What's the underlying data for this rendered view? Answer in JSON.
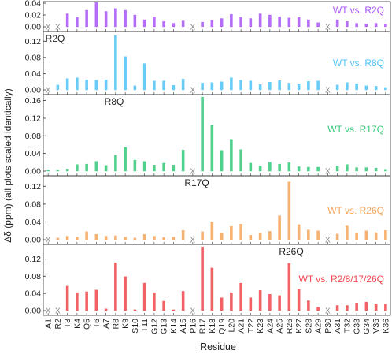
{
  "figure": {
    "y_axis_label": "Δδ (ppm) (all plots scaled identically)",
    "x_axis_label": "Residue"
  },
  "chart_data": [
    {
      "type": "bar",
      "title": "WT vs. R2Q",
      "panel_label": "",
      "color": "#a855f7",
      "ylim": [
        0,
        0.04
      ],
      "yticks": [
        0,
        0.02,
        0.04
      ],
      "yticklabels": [
        "0.00",
        "0.02",
        "0.04"
      ],
      "categories": [
        "A1",
        "R2",
        "T3",
        "K4",
        "Q5",
        "T6",
        "A7",
        "R8",
        "K9",
        "S10",
        "T11",
        "G12",
        "G13",
        "K14",
        "A15",
        "P16",
        "R17",
        "K18",
        "Q19",
        "L20",
        "A21",
        "T22",
        "K23",
        "A24",
        "A25",
        "R26",
        "K27",
        "S28",
        "A29",
        "P30",
        "A31",
        "T32",
        "G33",
        "G34",
        "V35",
        "K36"
      ],
      "values": [
        null,
        null,
        0.022,
        0.016,
        0.028,
        0.041,
        0.026,
        0.031,
        0.028,
        0.02,
        0.012,
        0.017,
        0.009,
        0.006,
        0.01,
        null,
        0.008,
        0.011,
        0.014,
        0.021,
        0.016,
        0.014,
        0.022,
        0.02,
        0.017,
        0.015,
        0.016,
        0.012,
        0.007,
        null,
        0.012,
        0.009,
        0.006,
        0.005,
        0.006,
        0.005
      ],
      "missing_marker": "X"
    },
    {
      "type": "bar",
      "title": "WT vs. R8Q",
      "panel_label": "R2Q",
      "color": "#4fc3f7",
      "ylim": [
        0,
        0.14
      ],
      "yticks": [
        0,
        0.04,
        0.08,
        0.12
      ],
      "yticklabels": [
        "0.00",
        "0.04",
        "0.08",
        "0.12"
      ],
      "categories": [
        "A1",
        "R2",
        "T3",
        "K4",
        "Q5",
        "T6",
        "A7",
        "R8",
        "K9",
        "S10",
        "T11",
        "G12",
        "G13",
        "K14",
        "A15",
        "P16",
        "R17",
        "K18",
        "Q19",
        "L20",
        "A21",
        "T22",
        "K23",
        "A24",
        "A25",
        "R26",
        "K27",
        "S28",
        "A29",
        "P30",
        "A31",
        "T32",
        "G33",
        "G34",
        "V35",
        "K36"
      ],
      "values": [
        null,
        0.012,
        0.028,
        0.03,
        0.025,
        0.024,
        0.025,
        0.134,
        0.082,
        0.01,
        0.065,
        0.022,
        0.022,
        0.011,
        0.027,
        null,
        0.017,
        0.018,
        0.02,
        0.03,
        0.024,
        0.022,
        0.013,
        0.019,
        0.023,
        0.017,
        0.015,
        0.021,
        0.022,
        null,
        0.012,
        0.018,
        0.015,
        0.01,
        0.009,
        0.006
      ],
      "missing_marker": "X"
    },
    {
      "type": "bar",
      "title": "WT vs. R17Q",
      "panel_label": "R8Q",
      "color": "#34c97a",
      "ylim": [
        0,
        0.17
      ],
      "yticks": [
        0,
        0.04,
        0.08,
        0.12,
        0.16
      ],
      "yticklabels": [
        "0.00",
        "0.04",
        "0.08",
        "0.12",
        "0.16"
      ],
      "categories": [
        "A1",
        "R2",
        "T3",
        "K4",
        "Q5",
        "T6",
        "A7",
        "R8",
        "K9",
        "S10",
        "T11",
        "G12",
        "G13",
        "K14",
        "A15",
        "P16",
        "R17",
        "K18",
        "Q19",
        "L20",
        "A21",
        "T22",
        "K23",
        "A24",
        "A25",
        "R26",
        "K27",
        "S28",
        "A29",
        "P30",
        "A31",
        "T32",
        "G33",
        "G34",
        "V35",
        "K36"
      ],
      "values": [
        0.003,
        0.003,
        0.005,
        0.015,
        0.016,
        0.022,
        0.013,
        0.036,
        0.054,
        0.025,
        0.022,
        0.014,
        0.018,
        0.014,
        0.048,
        null,
        0.168,
        0.104,
        0.047,
        0.072,
        0.049,
        0.018,
        0.012,
        0.02,
        0.016,
        0.019,
        0.01,
        0.009,
        0.009,
        null,
        0.012,
        0.015,
        0.008,
        0.008,
        0.007,
        0.004
      ],
      "missing_marker": "X"
    },
    {
      "type": "bar",
      "title": "WT vs. R26Q",
      "panel_label": "R17Q",
      "color": "#f5a55a",
      "ylim": [
        0,
        0.14
      ],
      "yticks": [
        0,
        0.04,
        0.08,
        0.12
      ],
      "yticklabels": [
        "0.00",
        "0.04",
        "0.08",
        "0.12"
      ],
      "categories": [
        "A1",
        "R2",
        "T3",
        "K4",
        "Q5",
        "T6",
        "A7",
        "R8",
        "K9",
        "S10",
        "T11",
        "G12",
        "G13",
        "K14",
        "A15",
        "P16",
        "R17",
        "K18",
        "Q19",
        "L20",
        "A21",
        "T22",
        "K23",
        "A24",
        "A25",
        "R26",
        "K27",
        "S28",
        "A29",
        "P30",
        "A31",
        "T32",
        "G33",
        "G34",
        "V35",
        "K36"
      ],
      "values": [
        null,
        0.004,
        0.008,
        0.006,
        0.018,
        0.012,
        0.008,
        0.009,
        0.006,
        0.004,
        0.012,
        0.008,
        0.005,
        0.006,
        0.021,
        null,
        0.018,
        0.04,
        0.015,
        0.03,
        0.035,
        0.01,
        0.015,
        0.019,
        0.054,
        0.13,
        0.034,
        0.022,
        0.02,
        null,
        0.013,
        0.031,
        0.015,
        0.02,
        0.016,
        0.021
      ],
      "missing_marker": "X"
    },
    {
      "type": "bar",
      "title": "WT vs. R2/8/17/26Q",
      "panel_label": "R26Q",
      "color": "#f0484e",
      "ylim": [
        0,
        0.15
      ],
      "yticks": [
        0,
        0.04,
        0.08,
        0.12
      ],
      "yticklabels": [
        "0.00",
        "0.04",
        "0.08",
        "0.12"
      ],
      "categories": [
        "A1",
        "R2",
        "T3",
        "K4",
        "Q5",
        "T6",
        "A7",
        "R8",
        "K9",
        "S10",
        "T11",
        "G12",
        "G13",
        "K14",
        "A15",
        "P16",
        "R17",
        "K18",
        "Q19",
        "L20",
        "A21",
        "T22",
        "K23",
        "A24",
        "A25",
        "R26",
        "K27",
        "S28",
        "A29",
        "P30",
        "A31",
        "T32",
        "G33",
        "G34",
        "V35",
        "K36"
      ],
      "values": [
        null,
        null,
        0.057,
        0.042,
        0.044,
        0.048,
        0.004,
        0.111,
        0.079,
        0.002,
        0.064,
        0.042,
        0.022,
        0.002,
        0.045,
        null,
        0.148,
        0.099,
        0.03,
        0.042,
        0.064,
        0.03,
        0.047,
        0.038,
        0.035,
        0.11,
        0.05,
        0.023,
        0.008,
        null,
        0.012,
        0.012,
        0.018,
        0.02,
        0.016,
        0.015
      ],
      "missing_marker": "X"
    }
  ]
}
